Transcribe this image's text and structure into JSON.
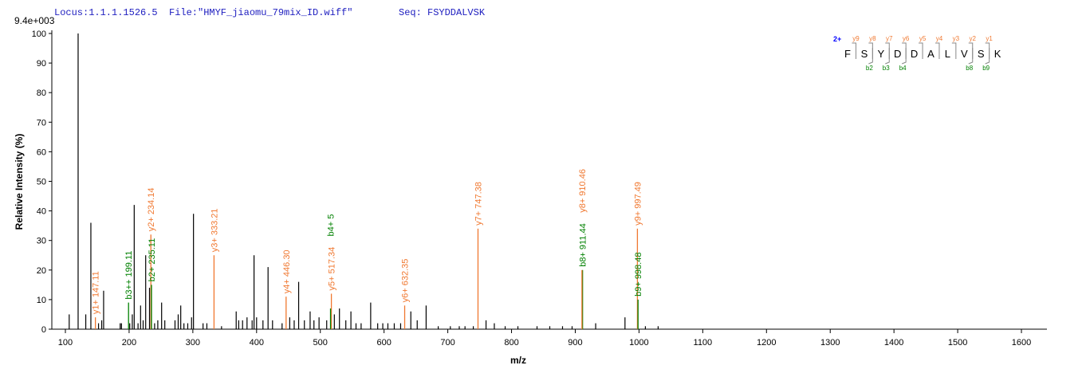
{
  "chart_data": {
    "type": "spectrum",
    "header": {
      "locus": "Locus:1.1.1.1526.5",
      "file": "File:\"HMYF_jiaomu_79mix_ID.wiff\"",
      "seq": "Seq: FSYDDALVSK"
    },
    "scale_label": "9.4e+003",
    "x_label": "m/z",
    "y_label": "Relative   Intensity (%)",
    "xlim": [
      80,
      1640
    ],
    "ylim": [
      0,
      100
    ],
    "xticks": [
      100,
      200,
      300,
      400,
      500,
      600,
      700,
      800,
      900,
      1000,
      1100,
      1200,
      1300,
      1400,
      1500,
      1600
    ],
    "yticks": [
      0,
      10,
      20,
      30,
      40,
      50,
      60,
      70,
      80,
      90,
      100
    ],
    "color": "#000000",
    "x": [
      106,
      120,
      132,
      140,
      152,
      157,
      160,
      186,
      188,
      201,
      205,
      208,
      214,
      218,
      222,
      226,
      232,
      240,
      245,
      251,
      256,
      272,
      277,
      281,
      286,
      292,
      298,
      301,
      316,
      322,
      345,
      368,
      372,
      378,
      385,
      393,
      396,
      400,
      410,
      418,
      425,
      440,
      452,
      459,
      466,
      475,
      484,
      490,
      498,
      510,
      522,
      530,
      540,
      548,
      556,
      564,
      579,
      590,
      598,
      606,
      616,
      626,
      642,
      652,
      666,
      685,
      704,
      718,
      727,
      740,
      760,
      773,
      790,
      810,
      840,
      860,
      880,
      895,
      932,
      978,
      1010,
      1030
    ],
    "values": [
      5,
      100,
      5,
      36,
      2,
      3,
      13,
      2,
      2,
      2,
      5,
      42,
      2,
      8,
      3,
      25,
      14,
      2,
      3,
      9,
      3,
      3,
      5,
      8,
      2,
      2,
      4,
      39,
      2,
      2,
      1,
      6,
      3,
      3,
      4,
      3,
      25,
      4,
      3,
      21,
      3,
      2,
      4,
      3,
      16,
      3,
      6,
      3,
      4,
      3,
      5,
      7,
      3,
      6,
      2,
      2,
      9,
      2,
      2,
      2,
      2,
      2,
      6,
      3,
      8,
      1,
      1,
      1,
      1,
      1,
      3,
      2,
      1,
      1,
      1,
      1,
      1,
      1,
      2,
      4,
      1,
      1
    ],
    "annotations": [
      {
        "label": "y1+ 147.11",
        "x": 147.11,
        "value": 4,
        "color": "#f07830"
      },
      {
        "label": "b3++ 199.11",
        "x": 199.11,
        "value": 9,
        "color": "#008000"
      },
      {
        "label": "y2+ 234.14",
        "x": 234.14,
        "value": 32,
        "color": "#f07830"
      },
      {
        "label": "b2+ 235.11",
        "x": 235.11,
        "value": 15,
        "color": "#008000"
      },
      {
        "label": "y3+ 333.21",
        "x": 333.21,
        "value": 25,
        "color": "#f07830"
      },
      {
        "label": "y4+ 446.30",
        "x": 446.3,
        "value": 11,
        "color": "#f07830"
      },
      {
        "label": "y5+ 517.34",
        "x": 517.34,
        "value": 12,
        "color": "#f07830"
      },
      {
        "label": "b4+ 5",
        "x": 516,
        "value": 7,
        "color": "#008000"
      },
      {
        "label": "y6+ 632.35",
        "x": 632.35,
        "value": 8,
        "color": "#f07830"
      },
      {
        "label": "y7+ 747.38",
        "x": 747.38,
        "value": 34,
        "color": "#f07830"
      },
      {
        "label": "b8+ 911.44",
        "x": 911.44,
        "value": 20,
        "color": "#008000"
      },
      {
        "label": "y8+ 910.46",
        "x": 910.46,
        "value": 20,
        "color": "#f07830"
      },
      {
        "label": "y9+ 997.49",
        "x": 997.49,
        "value": 34,
        "color": "#f07830"
      },
      {
        "label": "b9+ 998.48",
        "x": 998.48,
        "value": 10,
        "color": "#008000"
      }
    ],
    "fragment_map": {
      "charge": "2+",
      "residues": [
        "F",
        "S",
        "Y",
        "D",
        "D",
        "A",
        "L",
        "V",
        "S",
        "K"
      ],
      "y_labels": [
        "y9",
        "y8",
        "y7",
        "y6",
        "y5",
        "y4",
        "y3",
        "y2",
        "y1"
      ],
      "b_labels": [
        null,
        "b2",
        "b3",
        "b4",
        null,
        null,
        null,
        "b8",
        "b9"
      ]
    }
  }
}
